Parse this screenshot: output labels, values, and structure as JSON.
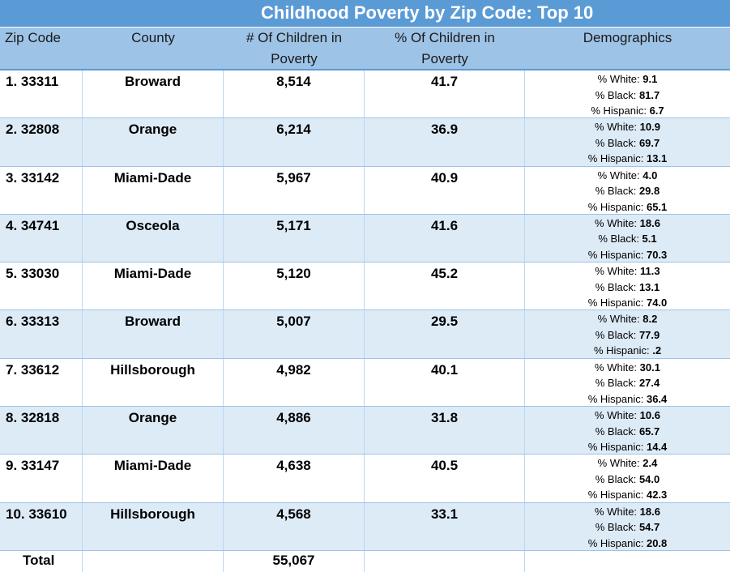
{
  "title": "Childhood Poverty by Zip Code: Top 10",
  "columns": {
    "zip": "Zip Code",
    "county": "County",
    "count_line1": "# Of Children in",
    "count_line2": "Poverty",
    "pct_line1": "% Of Children in",
    "pct_line2": "Poverty",
    "demo": "Demographics"
  },
  "demo_labels": {
    "white": "% White: ",
    "black": "% Black: ",
    "hispanic": "% Hispanic: "
  },
  "rows": [
    {
      "zip": "1. 33311",
      "county": "Broward",
      "count": "8,514",
      "pct": "41.7",
      "white": "9.1",
      "black": "81.7",
      "hispanic": "6.7"
    },
    {
      "zip": "2. 32808",
      "county": "Orange",
      "count": "6,214",
      "pct": "36.9",
      "white": "10.9",
      "black": "69.7",
      "hispanic": "13.1"
    },
    {
      "zip": "3. 33142",
      "county": "Miami-Dade",
      "count": "5,967",
      "pct": "40.9",
      "white": "4.0",
      "black": "29.8",
      "hispanic": "65.1"
    },
    {
      "zip": "4. 34741",
      "county": "Osceola",
      "count": "5,171",
      "pct": "41.6",
      "white": "18.6",
      "black": "5.1",
      "hispanic": "70.3"
    },
    {
      "zip": "5. 33030",
      "county": "Miami-Dade",
      "count": "5,120",
      "pct": "45.2",
      "white": "11.3",
      "black": "13.1",
      "hispanic": "74.0"
    },
    {
      "zip": "6. 33313",
      "county": "Broward",
      "count": "5,007",
      "pct": "29.5",
      "white": "8.2",
      "black": "77.9",
      "hispanic": ".2"
    },
    {
      "zip": "7. 33612",
      "county": "Hillsborough",
      "count": "4,982",
      "pct": "40.1",
      "white": "30.1",
      "black": "27.4",
      "hispanic": "36.4"
    },
    {
      "zip": "8. 32818",
      "county": "Orange",
      "count": "4,886",
      "pct": "31.8",
      "white": "10.6",
      "black": "65.7",
      "hispanic": "14.4"
    },
    {
      "zip": "9. 33147",
      "county": "Miami-Dade",
      "count": "4,638",
      "pct": "40.5",
      "white": "2.4",
      "black": "54.0",
      "hispanic": "42.3"
    },
    {
      "zip": "10. 33610",
      "county": "Hillsborough",
      "count": "4,568",
      "pct": "33.1",
      "white": "18.6",
      "black": "54.7",
      "hispanic": "20.8"
    }
  ],
  "total": {
    "label": "Total",
    "count": "55,067"
  },
  "colors": {
    "title_bg": "#5b9bd5",
    "header_bg": "#9dc3e6",
    "alt_row_bg": "#ddebf7"
  }
}
